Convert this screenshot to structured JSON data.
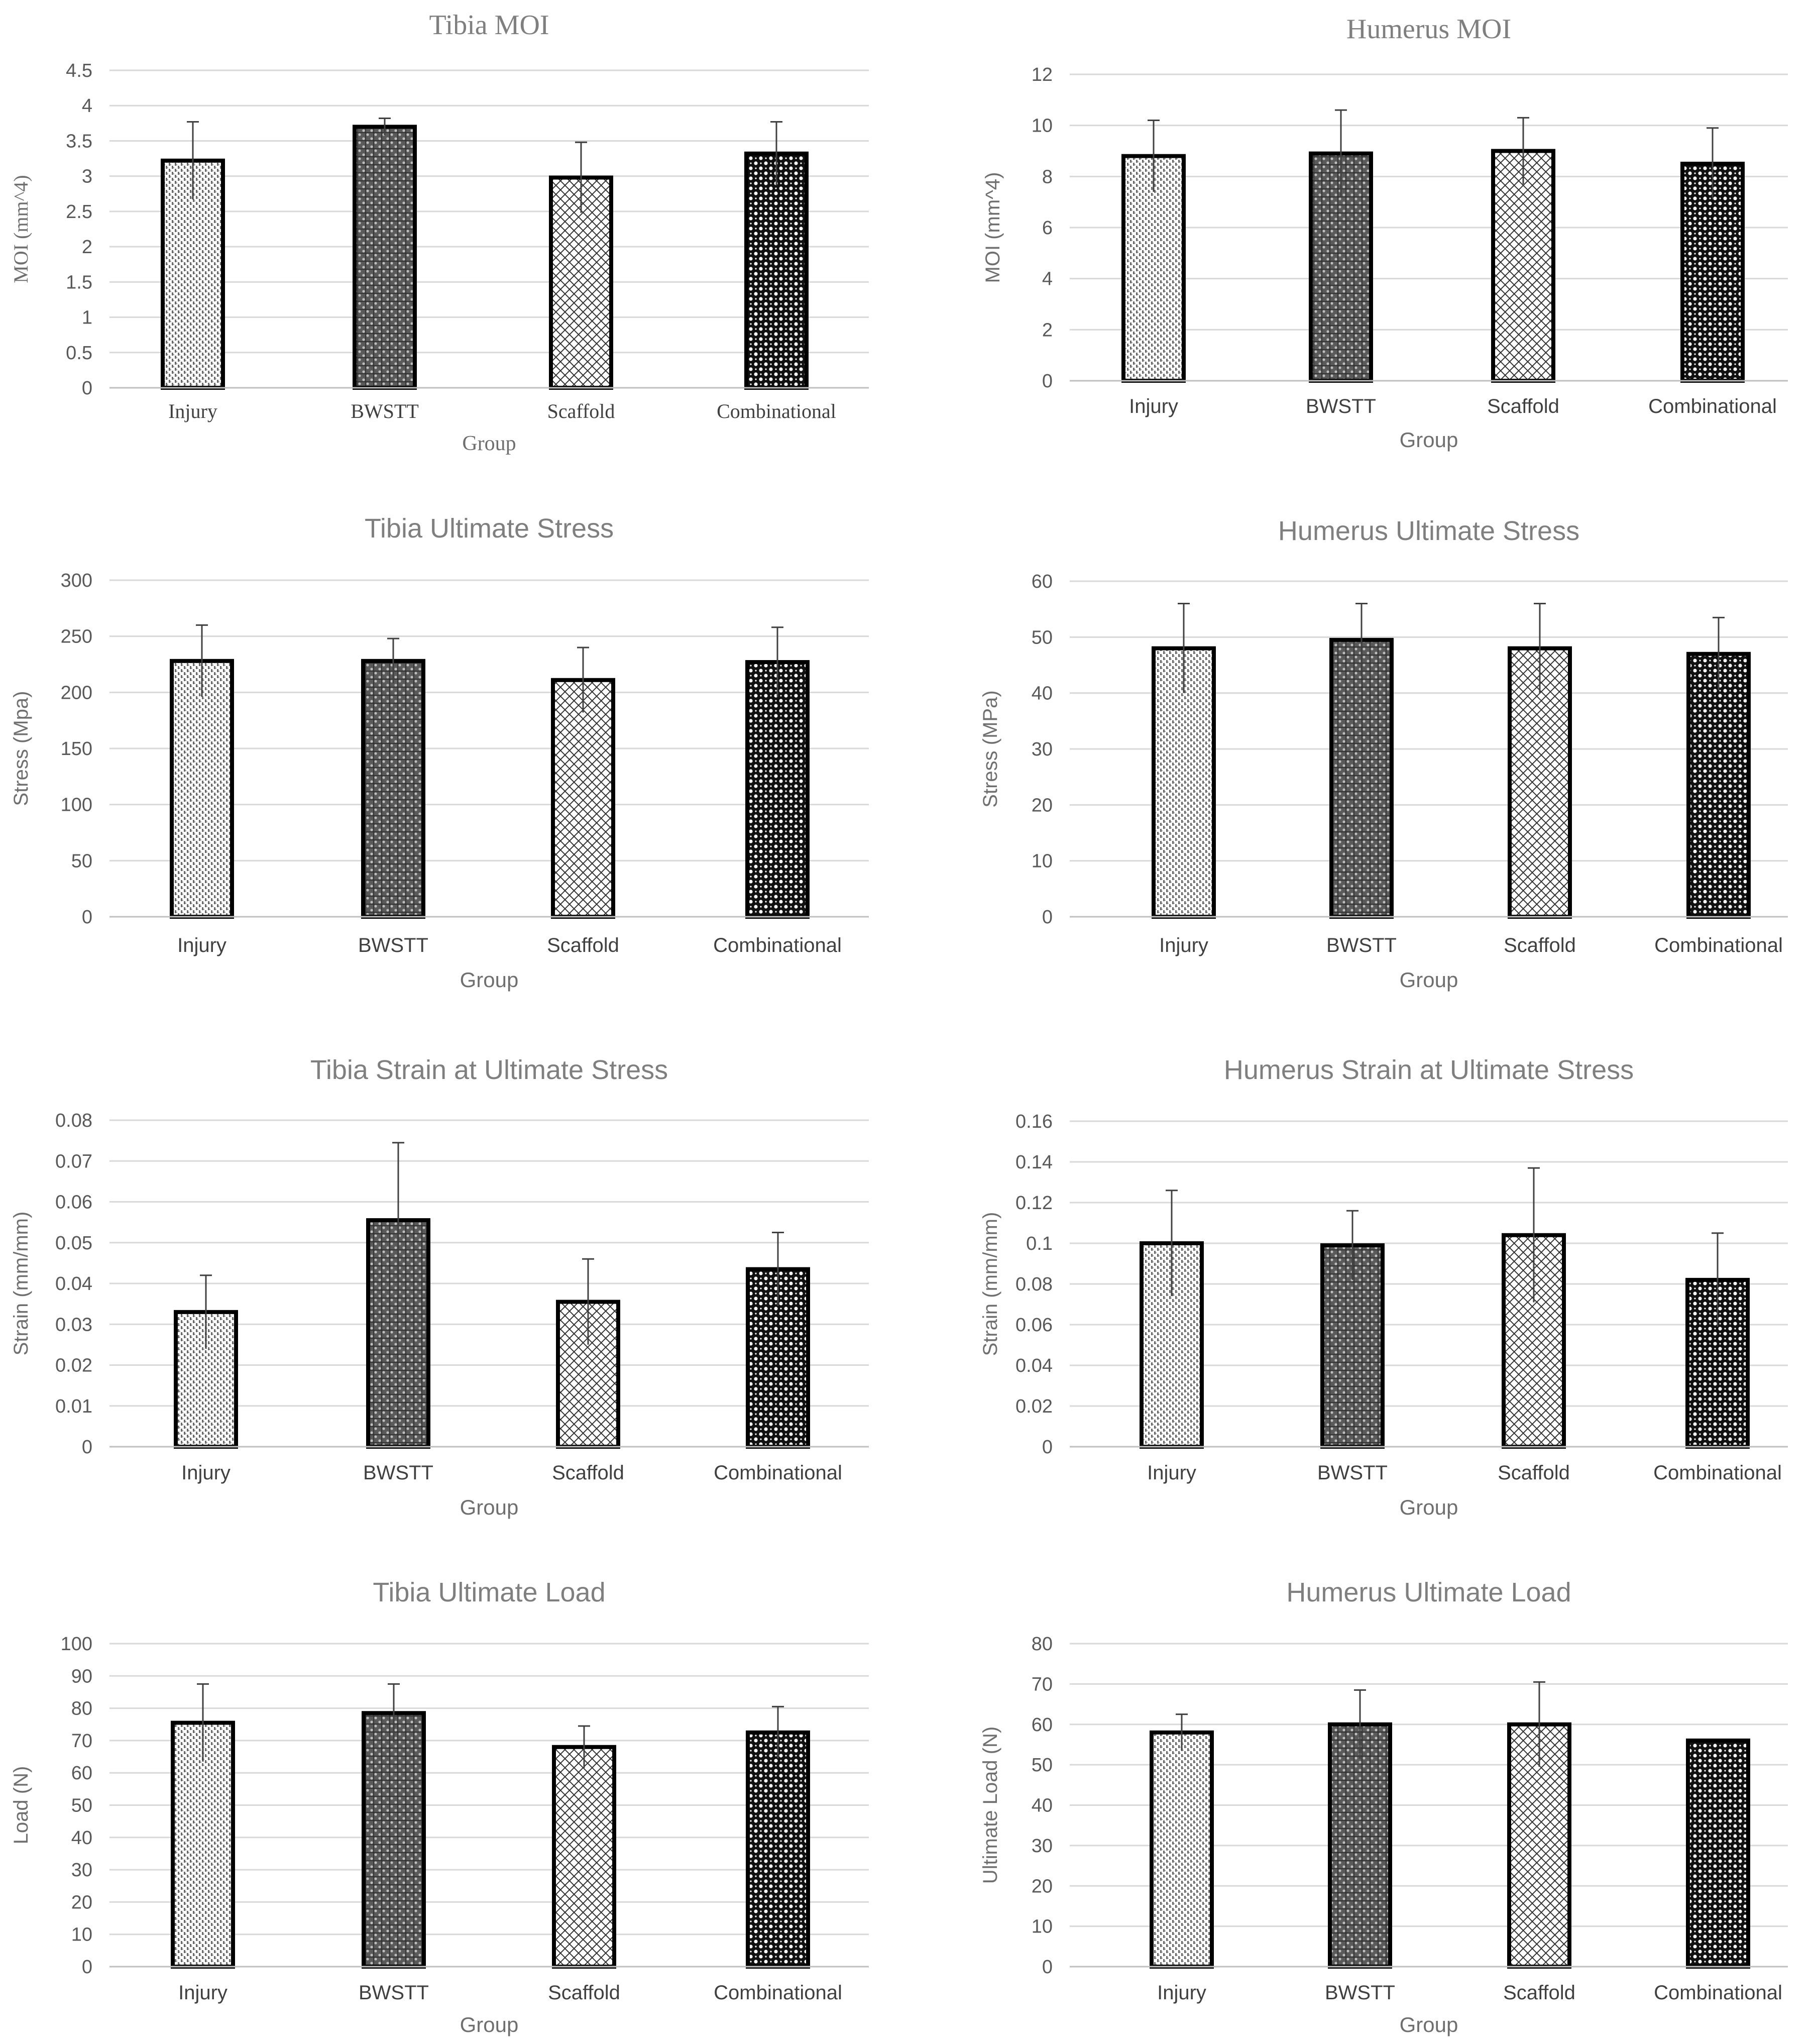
{
  "pattern_styles": [
    "vertical-dots",
    "dense-grid",
    "cross-hatch",
    "bold-checker"
  ],
  "chart_data": [
    {
      "type": "bar",
      "title": "Tibia MOI",
      "xlabel": "Group",
      "ylabel": "MOI (mm^4)",
      "categories": [
        "Injury",
        "BWSTT",
        "Scaffold",
        "Combinational"
      ],
      "series": [
        {
          "name": "MOI",
          "values": [
            3.22,
            3.7,
            2.98,
            3.32
          ],
          "errors": [
            0.55,
            0.12,
            0.5,
            0.45
          ]
        }
      ],
      "ylim": [
        0,
        4.5
      ],
      "yticks": [
        "0",
        "0.5",
        "1",
        "1.5",
        "2",
        "2.5",
        "3",
        "3.5",
        "4",
        "4.5"
      ],
      "grid": true
    },
    {
      "type": "bar",
      "title": "Humerus  MOI",
      "xlabel": "Group",
      "ylabel": "MOI (mm^4)",
      "categories": [
        "Injury",
        "BWSTT",
        "Scaffold",
        "Combinational"
      ],
      "series": [
        {
          "name": "MOI",
          "values": [
            8.8,
            8.9,
            9.0,
            8.5
          ],
          "errors": [
            1.4,
            1.7,
            1.3,
            1.4
          ]
        }
      ],
      "ylim": [
        0,
        12
      ],
      "yticks": [
        "0",
        "2",
        "4",
        "6",
        "8",
        "10",
        "12"
      ],
      "grid": true
    },
    {
      "type": "bar",
      "title": "Tibia Ultimate Stress",
      "xlabel": "Group",
      "ylabel": "Stress (Mpa)",
      "categories": [
        "Injury",
        "BWSTT",
        "Scaffold",
        "Combinational"
      ],
      "series": [
        {
          "name": "Stress",
          "values": [
            228,
            228,
            211,
            227
          ],
          "errors": [
            32,
            20,
            29,
            31
          ]
        }
      ],
      "ylim": [
        0,
        300
      ],
      "yticks": [
        "0",
        "50",
        "100",
        "150",
        "200",
        "250",
        "300"
      ],
      "grid": true
    },
    {
      "type": "bar",
      "title": "Humerus Ultimate Stress",
      "xlabel": "Group",
      "ylabel": "Stress (MPa)",
      "categories": [
        "Injury",
        "BWSTT",
        "Scaffold",
        "Combinational"
      ],
      "series": [
        {
          "name": "Stress",
          "values": [
            48,
            49.5,
            48,
            47
          ],
          "errors": [
            8,
            6.5,
            8,
            6.5
          ]
        }
      ],
      "ylim": [
        0,
        60
      ],
      "yticks": [
        "0",
        "10",
        "20",
        "30",
        "40",
        "50",
        "60"
      ],
      "grid": true
    },
    {
      "type": "bar",
      "title": "Tibia Strain at Ultimate Stress",
      "xlabel": "Group",
      "ylabel": "Strain (mm/mm)",
      "categories": [
        "Injury",
        "BWSTT",
        "Scaffold",
        "Combinational"
      ],
      "series": [
        {
          "name": "Strain",
          "values": [
            0.033,
            0.0555,
            0.0355,
            0.0435
          ],
          "errors": [
            0.009,
            0.019,
            0.0105,
            0.009
          ]
        }
      ],
      "ylim": [
        0,
        0.08
      ],
      "yticks": [
        "0",
        "0.01",
        "0.02",
        "0.03",
        "0.04",
        "0.05",
        "0.06",
        "0.07",
        "0.08"
      ],
      "grid": true
    },
    {
      "type": "bar",
      "title": "Humerus Strain at Ultimate Stress",
      "xlabel": "Group",
      "ylabel": "Strain (mm/mm)",
      "categories": [
        "Injury",
        "BWSTT",
        "Scaffold",
        "Combinational"
      ],
      "series": [
        {
          "name": "Strain",
          "values": [
            0.1,
            0.099,
            0.104,
            0.082
          ],
          "errors": [
            0.026,
            0.017,
            0.033,
            0.023
          ]
        }
      ],
      "ylim": [
        0,
        0.16
      ],
      "yticks": [
        "0",
        "0.02",
        "0.04",
        "0.06",
        "0.08",
        "0.1",
        "0.12",
        "0.14",
        "0.16"
      ],
      "grid": true
    },
    {
      "type": "bar",
      "title": "Tibia Ultimate Load",
      "xlabel": "Group",
      "ylabel": "Load (N)",
      "categories": [
        "Injury",
        "BWSTT",
        "Scaffold",
        "Combinational"
      ],
      "series": [
        {
          "name": "Load",
          "values": [
            75.5,
            78.5,
            68,
            72.5
          ],
          "errors": [
            12,
            9,
            6.5,
            8
          ]
        }
      ],
      "ylim": [
        0,
        100
      ],
      "yticks": [
        "0",
        "10",
        "20",
        "30",
        "40",
        "50",
        "60",
        "70",
        "80",
        "90",
        "100"
      ],
      "grid": true
    },
    {
      "type": "bar",
      "title": "Humerus Ultimate Load",
      "xlabel": "Group",
      "ylabel": "Ultimate Load (N)",
      "categories": [
        "Injury",
        "BWSTT",
        "Scaffold",
        "Combinational"
      ],
      "series": [
        {
          "name": "Load",
          "values": [
            58,
            60,
            60,
            56
          ],
          "errors": [
            4.5,
            8.5,
            10.5,
            0
          ]
        }
      ],
      "ylim": [
        0,
        80
      ],
      "yticks": [
        "0",
        "10",
        "20",
        "30",
        "40",
        "50",
        "60",
        "70",
        "80"
      ],
      "grid": true
    }
  ]
}
